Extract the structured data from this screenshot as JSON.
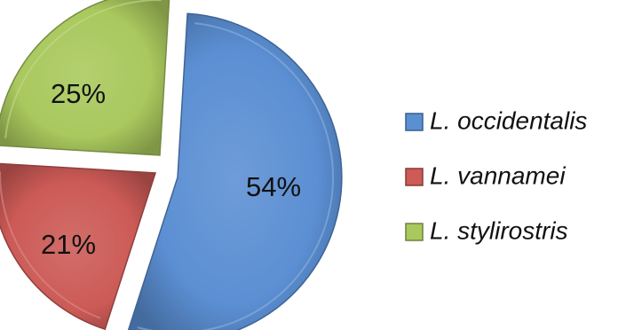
{
  "chart_data": {
    "type": "pie",
    "exploded": true,
    "style": "3d-bevel",
    "legend_position": "right",
    "series": [
      {
        "name": "L. occidentalis",
        "value": 54,
        "label": "54%",
        "color": "#5b8fd3"
      },
      {
        "name": "L. vannamei",
        "value": 21,
        "label": "21%",
        "color": "#cc5a56"
      },
      {
        "name": "L. stylirostris",
        "value": 25,
        "label": "25%",
        "color": "#a9c85d"
      }
    ]
  }
}
